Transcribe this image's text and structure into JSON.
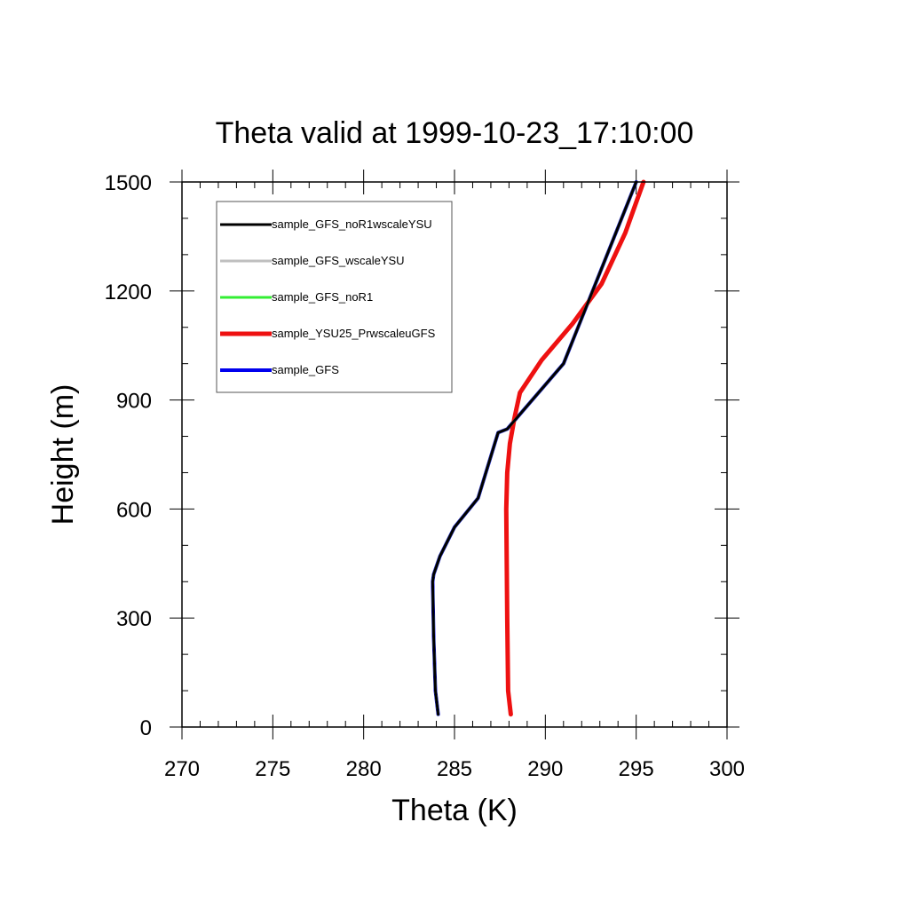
{
  "chart_data": {
    "type": "line",
    "title": "Theta valid at 1999-10-23_17:10:00",
    "xlabel": "Theta (K)",
    "ylabel": "Height (m)",
    "xlim": [
      270,
      300
    ],
    "ylim": [
      0,
      1500
    ],
    "xticks": [
      "270",
      "275",
      "280",
      "285",
      "290",
      "295",
      "300"
    ],
    "yticks": [
      "0",
      "300",
      "600",
      "900",
      "1200",
      "1500"
    ],
    "x_minor_step": 1,
    "y_minor_step": 100,
    "grid": false,
    "legend_placement": "top-left",
    "series": [
      {
        "name": "sample_GFS_noR1wscaleYSU",
        "color": "#000000",
        "width": 3,
        "x": [
          284.1,
          283.95,
          283.85,
          283.8,
          283.85,
          284.2,
          285.0,
          286.3,
          287.4,
          287.9,
          291.0,
          295.0
        ],
        "y": [
          35,
          100,
          250,
          400,
          420,
          470,
          550,
          630,
          810,
          820,
          1000,
          1500
        ]
      },
      {
        "name": "sample_GFS_wscaleYSU",
        "color": "#bfbfbf",
        "width": 3,
        "x": [
          284.1,
          283.95,
          283.85,
          283.8,
          283.85,
          284.2,
          285.0,
          286.3,
          287.4,
          287.9,
          291.0,
          295.0
        ],
        "y": [
          35,
          100,
          250,
          400,
          420,
          470,
          550,
          630,
          810,
          820,
          1000,
          1500
        ]
      },
      {
        "name": "sample_GFS_noR1",
        "color": "#33ee33",
        "width": 3,
        "x": [
          284.1,
          283.95,
          283.85,
          283.8,
          283.85,
          284.2,
          285.0,
          286.3,
          287.4,
          287.9,
          291.0,
          295.0
        ],
        "y": [
          35,
          100,
          250,
          400,
          420,
          470,
          550,
          630,
          810,
          820,
          1000,
          1500
        ]
      },
      {
        "name": "sample_YSU25_PrwscaleuGFS",
        "color": "#ee1111",
        "width": 5,
        "x": [
          288.1,
          287.95,
          287.9,
          287.85,
          287.9,
          288.05,
          288.3,
          288.6,
          289.8,
          291.5,
          293.1,
          294.4,
          295.4
        ],
        "y": [
          35,
          100,
          300,
          600,
          700,
          780,
          850,
          920,
          1010,
          1110,
          1220,
          1360,
          1500
        ]
      },
      {
        "name": "sample_GFS",
        "color": "#0000ee",
        "width": 4,
        "x": [
          284.1,
          283.95,
          283.85,
          283.8,
          283.85,
          284.2,
          285.0,
          286.3,
          287.4,
          287.9,
          291.0,
          295.0
        ],
        "y": [
          35,
          100,
          250,
          400,
          420,
          470,
          550,
          630,
          810,
          820,
          1000,
          1500
        ]
      }
    ],
    "draw_order": [
      4,
      3,
      2,
      1,
      0
    ]
  }
}
